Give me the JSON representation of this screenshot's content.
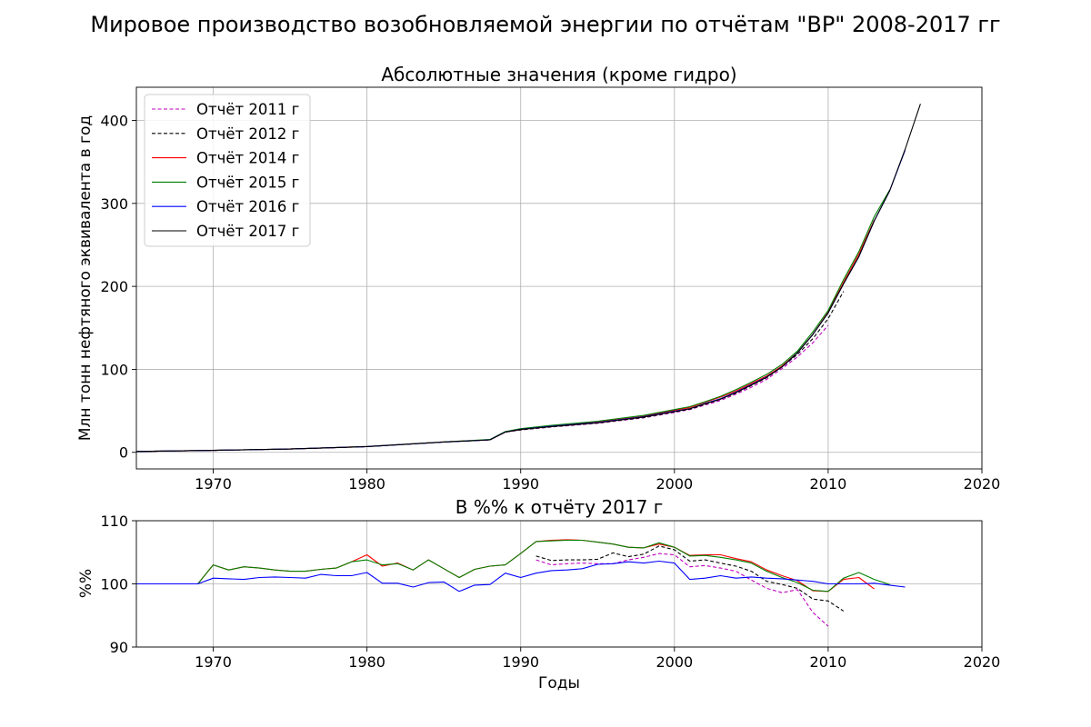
{
  "figure": {
    "title": "Мировое производство возобновляемой энергии по отчётам \"BP\" 2008-2017 гг"
  },
  "chart_data": [
    {
      "type": "line",
      "title": "Абсолютные значения (кроме гидро)",
      "xlabel": "",
      "ylabel": "Млн тонн нефтяного эквивалента в год",
      "xlim": [
        1965,
        2020
      ],
      "ylim": [
        -20,
        440
      ],
      "xticks": [
        1970,
        1980,
        1990,
        2000,
        2010,
        2020
      ],
      "yticks": [
        0,
        100,
        200,
        300,
        400
      ],
      "grid": true,
      "legend_position": "upper-left",
      "series": [
        {
          "name": "Отчёт 2011 г",
          "color": "#bf00bf",
          "dash": "dashed",
          "x": [
            1965,
            1970,
            1975,
            1980,
            1985,
            1988,
            1989,
            1990,
            1992,
            1995,
            1998,
            2000,
            2001,
            2002,
            2003,
            2004,
            2005,
            2006,
            2007,
            2008,
            2009,
            2010
          ],
          "y": [
            1,
            2.3,
            4,
            6.8,
            12.5,
            15,
            24.5,
            27,
            30.5,
            35,
            41.5,
            48,
            51.5,
            57,
            62.5,
            70,
            78.5,
            88,
            101,
            115,
            132,
            153
          ]
        },
        {
          "name": "Отчёт 2012 г",
          "color": "#000000",
          "dash": "dashed",
          "x": [
            1965,
            1970,
            1975,
            1980,
            1985,
            1988,
            1989,
            1990,
            1992,
            1995,
            1998,
            2000,
            2001,
            2002,
            2003,
            2004,
            2005,
            2006,
            2007,
            2008,
            2009,
            2010,
            2011
          ],
          "y": [
            1,
            2.3,
            4,
            6.8,
            12.5,
            15,
            24.5,
            27,
            30.8,
            35.4,
            42,
            48.8,
            52,
            58,
            64,
            71.5,
            80.5,
            90,
            103,
            118,
            137,
            161,
            194
          ]
        },
        {
          "name": "Отчёт 2014 г",
          "color": "#ff0000",
          "dash": "solid",
          "x": [
            1965,
            1970,
            1975,
            1980,
            1985,
            1988,
            1989,
            1990,
            1992,
            1995,
            1998,
            2000,
            2001,
            2002,
            2003,
            2004,
            2005,
            2006,
            2007,
            2008,
            2009,
            2010,
            2011,
            2012,
            2013
          ],
          "y": [
            1,
            2.3,
            4,
            7,
            12.5,
            15,
            24.5,
            27.5,
            31.5,
            36.5,
            43.5,
            50.5,
            54,
            60.5,
            66.5,
            74,
            83,
            92,
            104,
            120,
            142,
            169,
            205,
            239,
            280
          ]
        },
        {
          "name": "Отчёт 2015 г",
          "color": "#008000",
          "dash": "solid",
          "x": [
            1965,
            1970,
            1975,
            1980,
            1985,
            1988,
            1989,
            1990,
            1992,
            1995,
            1998,
            2000,
            2001,
            2002,
            2003,
            2004,
            2005,
            2006,
            2007,
            2008,
            2009,
            2010,
            2011,
            2012,
            2013,
            2014
          ],
          "y": [
            1,
            2.4,
            4.1,
            7,
            12.5,
            15.5,
            25,
            28.5,
            32.5,
            37.5,
            44.5,
            51.5,
            55,
            61,
            67.5,
            75.5,
            84.5,
            94,
            106,
            122,
            145,
            171,
            208,
            242,
            284,
            316
          ]
        },
        {
          "name": "Отчёт 2016 г",
          "color": "#0000ff",
          "dash": "solid",
          "x": [
            1965,
            1970,
            1975,
            1980,
            1985,
            1988,
            1989,
            1990,
            1992,
            1995,
            1998,
            2000,
            2001,
            2002,
            2003,
            2004,
            2005,
            2006,
            2007,
            2008,
            2009,
            2010,
            2011,
            2012,
            2013,
            2014,
            2015
          ],
          "y": [
            1,
            2.3,
            4,
            6.9,
            12.3,
            15,
            24.5,
            27.8,
            31.5,
            36,
            43,
            49.5,
            52.5,
            59,
            64.5,
            72.5,
            81.5,
            91,
            103,
            120,
            142,
            168,
            203,
            236,
            279,
            315,
            364
          ]
        },
        {
          "name": "Отчёт 2017 г",
          "color": "#000000",
          "dash": "solid",
          "x": [
            1965,
            1970,
            1975,
            1980,
            1985,
            1988,
            1989,
            1990,
            1992,
            1995,
            1998,
            2000,
            2001,
            2002,
            2003,
            2004,
            2005,
            2006,
            2007,
            2008,
            2009,
            2010,
            2011,
            2012,
            2013,
            2014,
            2015,
            2016
          ],
          "y": [
            1,
            2.3,
            4,
            6.8,
            12.3,
            15,
            24.5,
            27.5,
            31,
            35.5,
            42.5,
            49,
            52.5,
            58.5,
            64,
            72,
            81,
            90.5,
            103,
            120,
            142,
            168,
            203,
            236,
            279,
            315,
            365,
            420
          ]
        }
      ]
    },
    {
      "type": "line",
      "title": "В %% к отчёту 2017 г",
      "xlabel": "Годы",
      "ylabel": "%%",
      "xlim": [
        1965,
        2020
      ],
      "ylim": [
        90,
        110
      ],
      "xticks": [
        1970,
        1980,
        1990,
        2000,
        2010,
        2020
      ],
      "yticks": [
        90,
        100,
        110
      ],
      "grid": true,
      "series": [
        {
          "name": "Отчёт 2011 г",
          "color": "#bf00bf",
          "dash": "dashed",
          "x": [
            1991,
            1992,
            1993,
            1994,
            1995,
            1996,
            1997,
            1998,
            1999,
            2000,
            2001,
            2002,
            2003,
            2004,
            2005,
            2006,
            2007,
            2008,
            2009,
            2010
          ],
          "y": [
            103.8,
            103.0,
            103.2,
            103.3,
            103.2,
            103.2,
            103.8,
            104.2,
            104.8,
            104.6,
            102.7,
            102.9,
            102.5,
            102.0,
            100.6,
            99.3,
            98.6,
            99.1,
            95.5,
            93.3
          ]
        },
        {
          "name": "Отчёт 2012 г",
          "color": "#000000",
          "dash": "dashed",
          "x": [
            1991,
            1992,
            1993,
            1994,
            1995,
            1996,
            1997,
            1998,
            1999,
            2000,
            2001,
            2002,
            2003,
            2004,
            2005,
            2006,
            2007,
            2008,
            2009,
            2010,
            2011
          ],
          "y": [
            104.4,
            103.7,
            103.8,
            103.8,
            103.9,
            104.9,
            104.3,
            104.7,
            106.0,
            105.4,
            103.6,
            103.8,
            103.3,
            102.8,
            102.0,
            100.4,
            99.9,
            99.3,
            97.6,
            97.3,
            95.7
          ]
        },
        {
          "name": "Отчёт 2014 г",
          "color": "#ff0000",
          "dash": "solid",
          "x": [
            1965,
            1966,
            1967,
            1968,
            1969,
            1970,
            1971,
            1972,
            1973,
            1974,
            1975,
            1976,
            1977,
            1978,
            1979,
            1980,
            1981,
            1982,
            1983,
            1984,
            1985,
            1986,
            1987,
            1988,
            1989,
            1990,
            1991,
            1992,
            1993,
            1994,
            1995,
            1996,
            1997,
            1998,
            1999,
            2000,
            2001,
            2002,
            2003,
            2004,
            2005,
            2006,
            2007,
            2008,
            2009,
            2010,
            2011,
            2012,
            2013
          ],
          "y": [
            100,
            100,
            100,
            100,
            100,
            103,
            102.2,
            102.7,
            102.5,
            102.2,
            102,
            102,
            102.3,
            102.5,
            103.5,
            104.6,
            102.8,
            103.3,
            102.2,
            103.8,
            102.4,
            101,
            102.3,
            102.8,
            103,
            104.8,
            106.7,
            106.9,
            107,
            106.9,
            106.6,
            106.3,
            105.8,
            105.7,
            106.3,
            105.8,
            104.5,
            104.6,
            104.6,
            104.0,
            103.5,
            102.2,
            101.3,
            100.5,
            98.9,
            98.8,
            100.7,
            101.0,
            99.2
          ]
        },
        {
          "name": "Отчёт 2015 г",
          "color": "#008000",
          "dash": "solid",
          "x": [
            1965,
            1966,
            1967,
            1968,
            1969,
            1970,
            1971,
            1972,
            1973,
            1974,
            1975,
            1976,
            1977,
            1978,
            1979,
            1980,
            1981,
            1982,
            1983,
            1984,
            1985,
            1986,
            1987,
            1988,
            1989,
            1990,
            1991,
            1992,
            1993,
            1994,
            1995,
            1996,
            1997,
            1998,
            1999,
            2000,
            2001,
            2002,
            2003,
            2004,
            2005,
            2006,
            2007,
            2008,
            2009,
            2010,
            2011,
            2012,
            2013,
            2014
          ],
          "y": [
            100,
            100,
            100,
            100,
            100,
            103,
            102.2,
            102.7,
            102.5,
            102.2,
            102,
            102,
            102.3,
            102.5,
            103.5,
            103.8,
            103,
            103.2,
            102.2,
            103.8,
            102.4,
            101,
            102.3,
            102.8,
            103,
            104.8,
            106.7,
            106.8,
            106.9,
            106.9,
            106.6,
            106.3,
            105.8,
            105.7,
            106.5,
            105.8,
            104.4,
            104.5,
            104.2,
            103.8,
            103.3,
            102.0,
            101.0,
            100.2,
            99.0,
            98.8,
            100.9,
            101.8,
            100.7,
            99.9
          ]
        },
        {
          "name": "Отчёт 2016 г",
          "color": "#0000ff",
          "dash": "solid",
          "x": [
            1965,
            1966,
            1967,
            1968,
            1969,
            1970,
            1971,
            1972,
            1973,
            1974,
            1975,
            1976,
            1977,
            1978,
            1979,
            1980,
            1981,
            1982,
            1983,
            1984,
            1985,
            1986,
            1987,
            1988,
            1989,
            1990,
            1991,
            1992,
            1993,
            1994,
            1995,
            1996,
            1997,
            1998,
            1999,
            2000,
            2001,
            2002,
            2003,
            2004,
            2005,
            2006,
            2007,
            2008,
            2009,
            2010,
            2011,
            2012,
            2013,
            2014,
            2015
          ],
          "y": [
            100,
            100,
            100,
            100,
            100,
            100.9,
            100.8,
            100.7,
            101,
            101.1,
            101,
            100.9,
            101.5,
            101.3,
            101.3,
            101.8,
            100.1,
            100.1,
            99.5,
            100.2,
            100.3,
            98.8,
            99.8,
            99.9,
            101.7,
            101,
            101.7,
            102.1,
            102.2,
            102.4,
            103.1,
            103.2,
            103.5,
            103.3,
            103.6,
            103.3,
            100.7,
            100.9,
            101.3,
            100.9,
            101.1,
            100.9,
            100.8,
            100.6,
            100.4,
            100.0,
            100.0,
            100.0,
            100.1,
            99.8,
            99.5
          ]
        }
      ]
    }
  ]
}
